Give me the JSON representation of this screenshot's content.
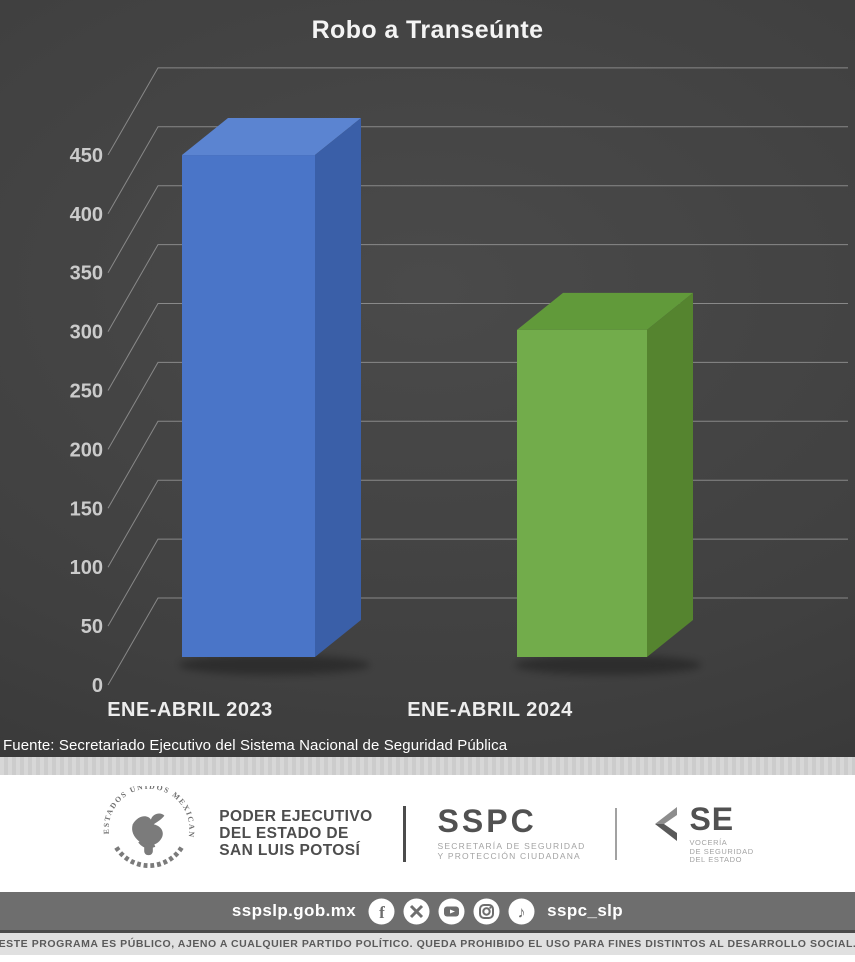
{
  "chart": {
    "title": "Robo a Transeúnte",
    "source": "Fuente: Secretariado Ejecutivo del Sistema Nacional de Seguridad Pública"
  },
  "chart_data": {
    "type": "bar",
    "style": "3d-column",
    "title": "Robo a Transeúnte",
    "categories": [
      "ENE-ABRIL 2023",
      "ENE-ABRIL 2024"
    ],
    "values": [
      445,
      290
    ],
    "xlabel": "",
    "ylabel": "",
    "ylim": [
      0,
      450
    ],
    "yticks": [
      0,
      50,
      100,
      150,
      200,
      250,
      300,
      350,
      400,
      450
    ],
    "grid": true,
    "legend": false,
    "background": "#404040",
    "gridline_color": "#9a9a9a",
    "bar_colors": [
      {
        "front": "#4a75c8",
        "top": "#5b84d1",
        "side": "#3a5fa8"
      },
      {
        "front": "#72ac4b",
        "top": "#619a3a",
        "side": "#55842f"
      }
    ]
  },
  "footer": {
    "government": {
      "emblem": "mexico-coat-of-arms-icon",
      "emblem_ring_text": "ESTADOS UNIDOS MEXICANOS",
      "lines": [
        "PODER EJECUTIVO",
        "DEL ESTADO DE",
        "SAN LUIS POTOSÍ"
      ]
    },
    "sspc": {
      "acronym": "SSPC",
      "sub_lines": [
        "SECRETARÍA DE SEGURIDAD",
        "Y PROTECCIÓN CIUDADANA"
      ]
    },
    "se": {
      "acronym": "SE",
      "sub_lines": [
        "VOCERÍA",
        "DE SEGURIDAD",
        "DEL ESTADO"
      ]
    },
    "social": {
      "website": "sspslp.gob.mx",
      "handle": "sspc_slp",
      "icons": [
        "facebook-icon",
        "x-twitter-icon",
        "youtube-icon",
        "instagram-icon",
        "tiktok-icon"
      ]
    },
    "disclaimer": "ESTE PROGRAMA ES PÚBLICO, AJENO A CUALQUIER PARTIDO POLÍTICO. QUEDA PROHIBIDO EL USO PARA FINES DISTINTOS AL DESARROLLO SOCIAL."
  }
}
